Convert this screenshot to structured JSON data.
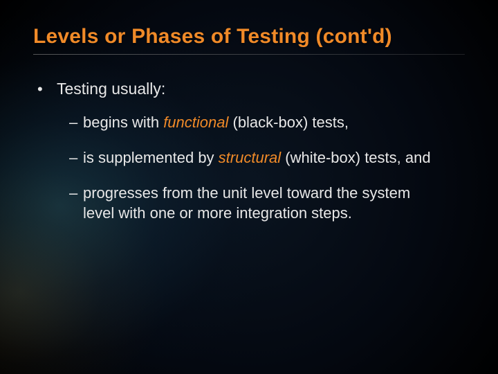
{
  "slide": {
    "title": "Levels or Phases of Testing (cont'd)",
    "title_color": "#f08a28",
    "title_fontsize": 30,
    "body_color": "#e8e8e8",
    "body_fontsize_l1": 23,
    "body_fontsize_l2": 22,
    "accent_color": "#f08a28",
    "background_base": "#000000",
    "background_glow_teal": "rgba(60,140,160,0.30)",
    "background_glow_amber": "rgba(150,120,50,0.22)",
    "bullets": {
      "level1": [
        {
          "text": "Testing usually:",
          "children": [
            {
              "pre": "begins with ",
              "em": "functional",
              "post": " (black-box) tests,"
            },
            {
              "pre": "is supplemented by ",
              "em": "structural",
              "post": " (white-box) tests, and"
            },
            {
              "pre": "progresses from the unit level toward the system level with one or more integration steps.",
              "em": "",
              "post": ""
            }
          ]
        }
      ]
    }
  }
}
